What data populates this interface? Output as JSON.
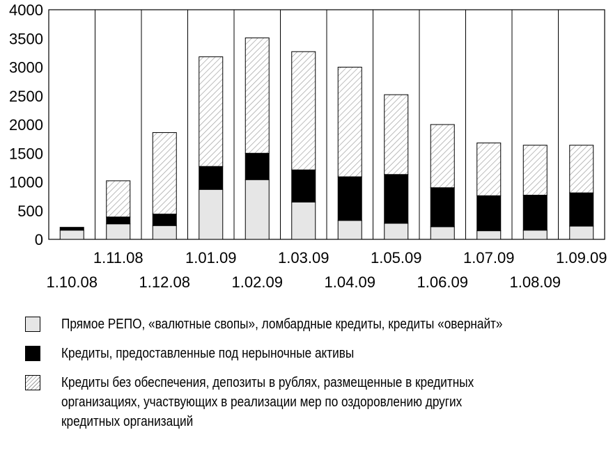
{
  "chart_data": {
    "type": "bar",
    "stacked": true,
    "categories": [
      "1.10.08",
      "1.11.08",
      "1.12.08",
      "1.01.09",
      "1.02.09",
      "1.03.09",
      "1.04.09",
      "1.05.09",
      "1.06.09",
      "1.07.09",
      "1.08.09",
      "1.09.09"
    ],
    "series": [
      {
        "name": "Прямое РЕПО, «валютные свопы», ломбардные кредиты, кредиты «овернайт»",
        "color": "#e6e6e6",
        "pattern": "solid",
        "values": [
          160,
          270,
          240,
          870,
          1040,
          650,
          330,
          280,
          220,
          150,
          160,
          230
        ]
      },
      {
        "name": "Кредиты, предоставленные под нерыночные активы",
        "color": "#000000",
        "pattern": "solid",
        "values": [
          50,
          120,
          200,
          400,
          460,
          560,
          760,
          850,
          680,
          610,
          610,
          580
        ]
      },
      {
        "name": "Кредиты без обеспечения,  депозиты в рублях, размещенные в кредитных организациях, участвующих в реализации мер по оздоровлению других кредитных организаций",
        "color": "#ffffff",
        "pattern": "hatched",
        "values": [
          0,
          630,
          1420,
          1910,
          2010,
          2060,
          1910,
          1390,
          1100,
          920,
          870,
          830
        ]
      }
    ],
    "ylim": [
      0,
      4000
    ],
    "yticks": [
      "0",
      "500",
      "1000",
      "1500",
      "2000",
      "2500",
      "3000",
      "3500",
      "4000"
    ],
    "grid": "vertical separators between categories",
    "legend_position": "bottom"
  },
  "legend": {
    "items": [
      {
        "swatch": "grey",
        "label": "Прямое РЕПО, «валютные свопы», ломбардные кредиты, кредиты «овернайт»"
      },
      {
        "swatch": "black",
        "label": "Кредиты, предоставленные под нерыночные активы"
      },
      {
        "swatch": "hatch",
        "label": "Кредиты без обеспечения,  депозиты в рублях, размещенные в кредитных организациях, участвующих в реализации мер по оздоровлению других кредитных организаций"
      }
    ]
  }
}
